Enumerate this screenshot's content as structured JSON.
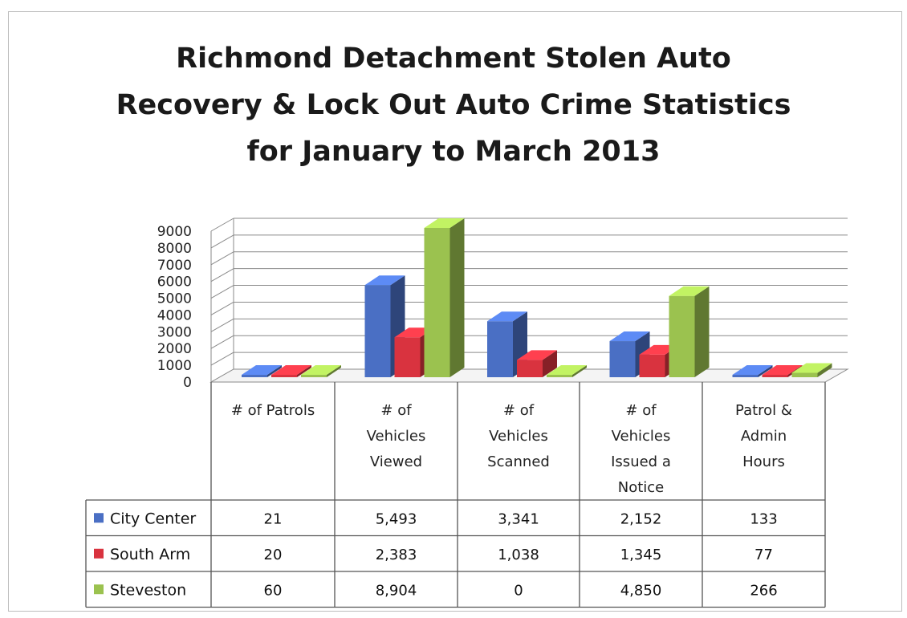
{
  "chart_data": {
    "type": "bar",
    "title_lines": [
      "Richmond Detachment Stolen Auto",
      "Recovery & Lock Out Auto Crime Statistics",
      "for January to March 2013"
    ],
    "categories": [
      [
        "# of Patrols"
      ],
      [
        "# of",
        "Vehicles",
        "Viewed"
      ],
      [
        "# of",
        "Vehicles",
        "Scanned"
      ],
      [
        "# of",
        "Vehicles",
        "Issued a",
        "Notice"
      ],
      [
        "Patrol &",
        "Admin",
        "Hours"
      ]
    ],
    "series": [
      {
        "name": "City Center",
        "values": [
          21,
          5493,
          3341,
          2152,
          133
        ],
        "labels": [
          "21",
          "5,493",
          "3,341",
          "2,152",
          "133"
        ]
      },
      {
        "name": "South Arm",
        "values": [
          20,
          2383,
          1038,
          1345,
          77
        ],
        "labels": [
          "20",
          "2,383",
          "1,038",
          "1,345",
          "77"
        ]
      },
      {
        "name": "Steveston",
        "values": [
          60,
          8904,
          0,
          4850,
          266
        ],
        "labels": [
          "60",
          "8,904",
          "0",
          "4,850",
          "266"
        ]
      }
    ],
    "y_ticks": [
      "0",
      "1000",
      "2000",
      "3000",
      "4000",
      "5000",
      "6000",
      "7000",
      "8000",
      "9000"
    ],
    "ylim": [
      0,
      9000
    ],
    "grid": true,
    "style": "3d-clustered-column-with-data-table",
    "colors": {
      "City Center": "#4a6fc4",
      "South Arm": "#d9333f",
      "Steveston": "#9bc24f"
    }
  }
}
